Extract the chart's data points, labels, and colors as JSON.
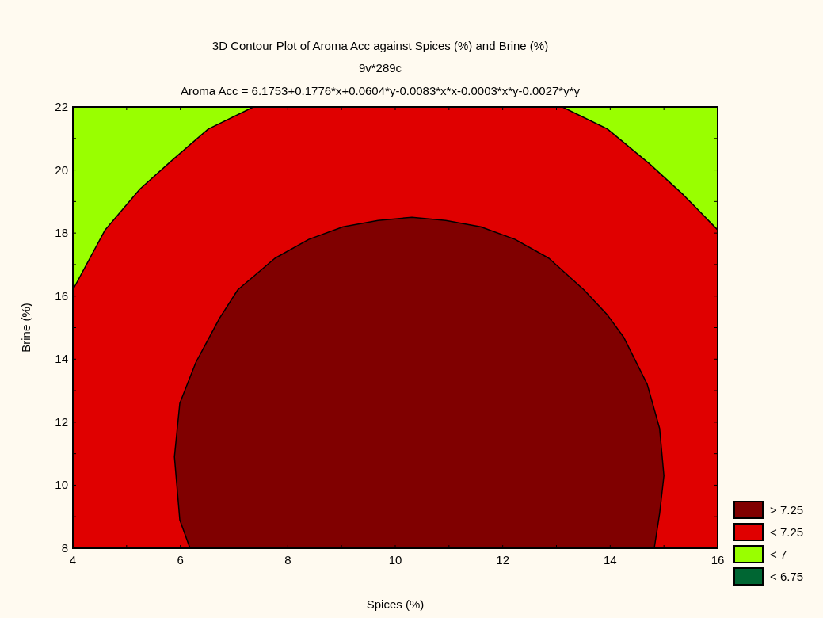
{
  "chart_data": {
    "type": "area",
    "title": "3D Contour Plot of Aroma Acc against Spices (%) and Brine (%)",
    "subtitle": "9v*289c",
    "annotations": [
      "Aroma Acc = 6.1753+0.1776*x+0.0604*y-0.0083*x*x-0.0003*x*y-0.0027*y*y"
    ],
    "xlabel": "Spices (%)",
    "ylabel": "Brine (%)",
    "xlim": [
      4,
      16
    ],
    "ylim": [
      8,
      22
    ],
    "xticks": [
      4,
      {
        "value": 5,
        "label": null
      },
      6,
      {
        "value": 7,
        "label": null
      },
      8,
      {
        "value": 9,
        "label": null
      },
      10,
      {
        "value": 11,
        "label": null
      },
      12,
      {
        "value": 13,
        "label": null
      },
      14,
      {
        "value": 15,
        "label": null
      },
      16
    ],
    "yticks": [
      8,
      {
        "value": 9,
        "label": null
      },
      10,
      {
        "value": 11,
        "label": null
      },
      12,
      {
        "value": 13,
        "label": null
      },
      14,
      {
        "value": 15,
        "label": null
      },
      16,
      {
        "value": 17,
        "label": null
      },
      18,
      {
        "value": 19,
        "label": null
      },
      20,
      {
        "value": 21,
        "label": null
      },
      22
    ],
    "legend": "bottom right",
    "grid": false,
    "series": [
      {
        "name": "> 7.25",
        "color": "#800000",
        "x": [
          6.18,
          5.99,
          5.89,
          5.99,
          6.29,
          6.73,
          7.07,
          7.76,
          8.39,
          9.03,
          9.68,
          10.31,
          10.94,
          11.59,
          12.23,
          12.86,
          13.51,
          13.95,
          14.25,
          14.69,
          14.92,
          15.0,
          14.92,
          14.82
        ],
        "values": [
          8,
          8.9,
          10.9,
          12.6,
          13.9,
          15.3,
          16.2,
          17.2,
          17.8,
          18.2,
          18.4,
          18.5,
          18.4,
          18.2,
          17.8,
          17.2,
          16.2,
          15.4,
          14.7,
          13.2,
          11.8,
          10.3,
          9.1,
          8
        ]
      },
      {
        "name": "< 7.25",
        "color": "#e00000",
        "x": [
          4,
          16,
          16,
          4
        ],
        "values": [
          8,
          8,
          22,
          22
        ]
      },
      {
        "name": "< 7",
        "color": "#99ff00",
        "x": [
          4,
          4,
          4.6,
          5.25,
          5.84,
          6.52,
          7.36
        ],
        "values": [
          22,
          16.2,
          18.1,
          19.4,
          20.3,
          21.3,
          22
        ]
      },
      {
        "color": "#99ff00",
        "x": [
          13.11,
          13.95,
          14.73,
          15.37,
          16,
          16
        ],
        "values": [
          22,
          21.3,
          20.2,
          19.2,
          18.1,
          22
        ]
      },
      {
        "name": "< 6.75",
        "color": "#006633"
      }
    ]
  }
}
